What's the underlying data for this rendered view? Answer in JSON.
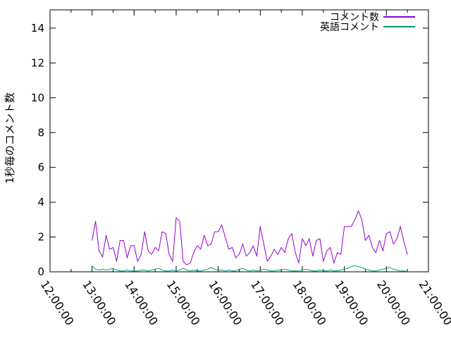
{
  "window": {
    "background": "#ffffff"
  },
  "chart_data": {
    "type": "line",
    "title": "",
    "xlabel": "",
    "ylabel": "1秒毎のコメント数",
    "grid": false,
    "legend_position": "top-right-inside",
    "axis_color": "#000000",
    "text_color": "#000000",
    "ylim": [
      0,
      15.05
    ],
    "y_ticks": [
      0,
      2,
      4,
      6,
      8,
      10,
      12,
      14
    ],
    "x_range_hours": [
      12,
      21
    ],
    "x_tick_labels": [
      "12:00:00",
      "13:00:00",
      "14:00:00",
      "15:00:00",
      "16:00:00",
      "17:00:00",
      "18:00:00",
      "19:00:00",
      "20:00:00",
      "21:00:00"
    ],
    "x_minor_tick_minutes": 30,
    "series": [
      {
        "name": "コメント数",
        "color": "#9400D3",
        "start_time": "13:00:00",
        "interval_minutes": 5,
        "values": [
          1.8,
          2.9,
          1.2,
          0.85,
          2.1,
          1.3,
          1.4,
          0.6,
          1.8,
          1.8,
          0.8,
          1.5,
          1.5,
          0.6,
          1.0,
          2.3,
          1.2,
          1.0,
          1.4,
          1.2,
          2.3,
          2.2,
          1.0,
          0.6,
          3.1,
          2.9,
          0.6,
          0.4,
          0.5,
          1.1,
          1.5,
          1.3,
          2.1,
          1.5,
          1.6,
          2.3,
          2.3,
          2.7,
          2.0,
          1.3,
          1.4,
          0.8,
          1.0,
          1.6,
          0.9,
          1.1,
          1.5,
          0.9,
          2.6,
          1.6,
          0.6,
          0.9,
          1.3,
          1.0,
          1.4,
          1.1,
          1.9,
          2.2,
          1.1,
          0.5,
          1.9,
          1.5,
          1.9,
          0.9,
          1.8,
          1.9,
          0.6,
          1.2,
          1.4,
          0.5,
          1.1,
          1.0,
          2.6,
          2.6,
          2.6,
          3.0,
          3.5,
          3.0,
          1.8,
          2.1,
          1.4,
          1.1,
          1.8,
          1.2,
          2.2,
          2.3,
          1.6,
          1.9,
          2.6,
          1.7,
          1.0
        ]
      },
      {
        "name": "英語コメント",
        "color": "#009E73",
        "start_time": "13:00:00",
        "interval_minutes": 5,
        "values": [
          0.35,
          0.15,
          0.1,
          0.15,
          0.1,
          0.15,
          0.2,
          0.1,
          0.05,
          0.05,
          0.1,
          0.05,
          0.05,
          0.05,
          0.1,
          0.1,
          0.05,
          0.1,
          0.15,
          0.2,
          0.1,
          0.05,
          0.05,
          0.1,
          0.05,
          0.1,
          0.2,
          0.1,
          0.05,
          0.1,
          0.05,
          0.05,
          0.1,
          0.15,
          0.25,
          0.15,
          0.1,
          0.1,
          0.05,
          0.1,
          0.05,
          0.05,
          0.15,
          0.2,
          0.1,
          0.05,
          0.1,
          0.05,
          0.1,
          0.15,
          0.1,
          0.05,
          0.05,
          0.1,
          0.1,
          0.15,
          0.1,
          0.05,
          0.05,
          0.05,
          0.1,
          0.15,
          0.1,
          0.05,
          0.05,
          0.1,
          0.05,
          0.05,
          0.1,
          0.05,
          0.05,
          0.1,
          0.15,
          0.2,
          0.3,
          0.35,
          0.3,
          0.25,
          0.15,
          0.1,
          0.05,
          0.05,
          0.1,
          0.15,
          0.2,
          0.25,
          0.15,
          0.1,
          0.05,
          0.05,
          0.02
        ]
      }
    ]
  }
}
